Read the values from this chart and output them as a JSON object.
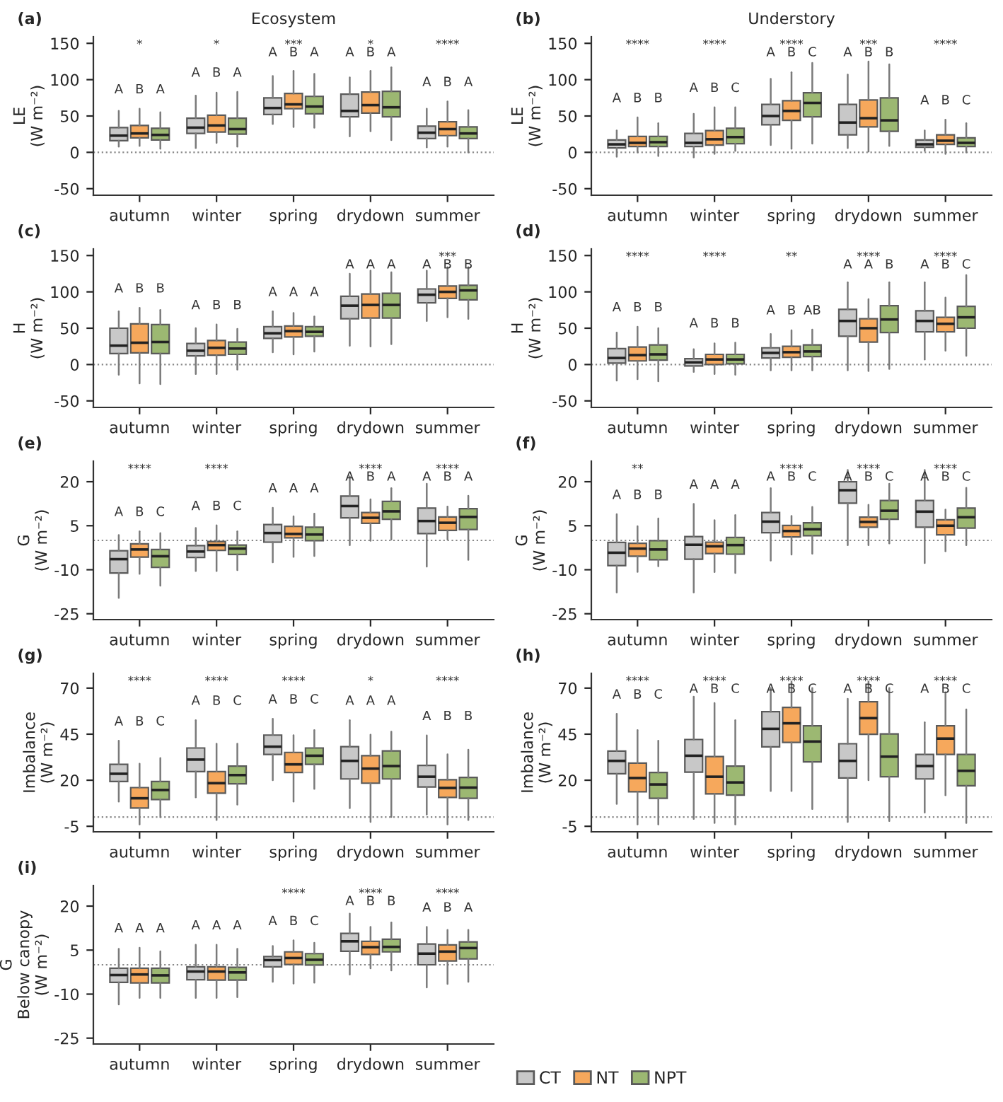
{
  "chart_data": [
    {
      "type": "box",
      "title": "(a)",
      "subtitle": "Ecosystem",
      "ylabel": "LE\n(W m⁻²)",
      "categories": [
        "autumn",
        "winter",
        "spring",
        "drydown",
        "summer"
      ],
      "ylim": [
        -59,
        159
      ],
      "yticks": [
        -50,
        0,
        50,
        100,
        150
      ],
      "ref_lines": [
        {
          "axis": "y",
          "value": 0,
          "line_style": "dotted"
        }
      ],
      "totals": [
        "*",
        "*",
        "***",
        "*",
        "****"
      ],
      "series": [
        {
          "color": "#c8c8c8",
          "value_labels": [
            "A",
            "A",
            "A",
            "A",
            "A"
          ],
          "boxes": [
            {
              "low": 8,
              "q1": 16,
              "median": 23,
              "q3": 34,
              "high": 57
            },
            {
              "low": 6,
              "q1": 26,
              "median": 34,
              "q3": 47,
              "high": 78
            },
            {
              "low": 39,
              "q1": 52,
              "median": 61,
              "q3": 75,
              "high": 105
            },
            {
              "low": 22,
              "q1": 49,
              "median": 57,
              "q3": 80,
              "high": 103
            },
            {
              "low": 7,
              "q1": 19,
              "median": 27,
              "q3": 36,
              "high": 60
            }
          ]
        },
        {
          "color": "#f6a85c",
          "value_labels": [
            "B",
            "B",
            "B",
            "B",
            "B"
          ],
          "boxes": [
            {
              "low": 9,
              "q1": 20,
              "median": 26,
              "q3": 37,
              "high": 60
            },
            {
              "low": 13,
              "q1": 28,
              "median": 37,
              "q3": 51,
              "high": 82
            },
            {
              "low": 35,
              "q1": 60,
              "median": 66,
              "q3": 81,
              "high": 112
            },
            {
              "low": 29,
              "q1": 54,
              "median": 65,
              "q3": 83,
              "high": 112
            },
            {
              "low": 8,
              "q1": 23,
              "median": 32,
              "q3": 42,
              "high": 70
            }
          ]
        },
        {
          "color": "#9cb872",
          "value_labels": [
            "A",
            "A",
            "A",
            "A",
            "A"
          ],
          "boxes": [
            {
              "low": 5,
              "q1": 17,
              "median": 24,
              "q3": 33,
              "high": 55
            },
            {
              "low": 8,
              "q1": 25,
              "median": 32,
              "q3": 47,
              "high": 83
            },
            {
              "low": 34,
              "q1": 53,
              "median": 63,
              "q3": 77,
              "high": 108
            },
            {
              "low": 17,
              "q1": 49,
              "median": 62,
              "q3": 84,
              "high": 117
            },
            {
              "low": 0,
              "q1": 19,
              "median": 26,
              "q3": 35,
              "high": 58
            }
          ]
        }
      ]
    },
    {
      "type": "box",
      "title": "(b)",
      "subtitle": "Understory",
      "ylabel": "LE\n(W m⁻²)",
      "categories": [
        "autumn",
        "winter",
        "spring",
        "drydown",
        "summer"
      ],
      "ylim": [
        -59,
        159
      ],
      "yticks": [
        -50,
        0,
        50,
        100,
        150
      ],
      "ref_lines": [
        {
          "axis": "y",
          "value": 0,
          "line_style": "dotted"
        }
      ],
      "totals": [
        "****",
        "****",
        "****",
        "***",
        "****"
      ],
      "series": [
        {
          "color": "#c8c8c8",
          "value_labels": [
            "A",
            "A",
            "A",
            "A",
            "A"
          ],
          "boxes": [
            {
              "low": -6,
              "q1": 6,
              "median": 11,
              "q3": 17,
              "high": 30
            },
            {
              "low": -7,
              "q1": 8,
              "median": 13,
              "q3": 26,
              "high": 53
            },
            {
              "low": 10,
              "q1": 38,
              "median": 50,
              "q3": 66,
              "high": 101
            },
            {
              "low": 6,
              "q1": 24,
              "median": 41,
              "q3": 66,
              "high": 107
            },
            {
              "low": 2,
              "q1": 7,
              "median": 11,
              "q3": 17,
              "high": 30
            }
          ]
        },
        {
          "color": "#f6a85c",
          "value_labels": [
            "B",
            "B",
            "B",
            "B",
            "B"
          ],
          "boxes": [
            {
              "low": 0,
              "q1": 8,
              "median": 13,
              "q3": 22,
              "high": 48
            },
            {
              "low": -2,
              "q1": 10,
              "median": 18,
              "q3": 30,
              "high": 62
            },
            {
              "low": 5,
              "q1": 44,
              "median": 57,
              "q3": 71,
              "high": 110
            },
            {
              "low": 1,
              "q1": 35,
              "median": 47,
              "q3": 72,
              "high": 125
            },
            {
              "low": -2,
              "q1": 11,
              "median": 16,
              "q3": 24,
              "high": 45
            }
          ]
        },
        {
          "color": "#9cb872",
          "value_labels": [
            "B",
            "C",
            "C",
            "B",
            "C"
          ],
          "boxes": [
            {
              "low": -5,
              "q1": 8,
              "median": 14,
              "q3": 22,
              "high": 40
            },
            {
              "low": 2,
              "q1": 12,
              "median": 21,
              "q3": 33,
              "high": 62
            },
            {
              "low": 12,
              "q1": 49,
              "median": 68,
              "q3": 82,
              "high": 123
            },
            {
              "low": 9,
              "q1": 29,
              "median": 44,
              "q3": 75,
              "high": 121
            },
            {
              "low": 0,
              "q1": 8,
              "median": 13,
              "q3": 20,
              "high": 40
            }
          ]
        }
      ]
    },
    {
      "type": "box",
      "title": "(c)",
      "ylabel": "H\n(W m⁻²)",
      "categories": [
        "autumn",
        "winter",
        "spring",
        "drydown",
        "summer"
      ],
      "ylim": [
        -59,
        159
      ],
      "yticks": [
        -50,
        0,
        50,
        100,
        150
      ],
      "ref_lines": [
        {
          "axis": "y",
          "value": 0,
          "line_style": "dotted"
        }
      ],
      "totals": [
        null,
        null,
        null,
        null,
        "***"
      ],
      "series": [
        {
          "color": "#c8c8c8",
          "value_labels": [
            "A",
            "A",
            "A",
            "A",
            "A"
          ],
          "boxes": [
            {
              "low": -14,
              "q1": 15,
              "median": 26,
              "q3": 50,
              "high": 73
            },
            {
              "low": -13,
              "q1": 12,
              "median": 19,
              "q3": 29,
              "high": 50
            },
            {
              "low": 17,
              "q1": 36,
              "median": 43,
              "q3": 52,
              "high": 73
            },
            {
              "low": 26,
              "q1": 63,
              "median": 81,
              "q3": 94,
              "high": 125
            },
            {
              "low": 60,
              "q1": 85,
              "median": 96,
              "q3": 104,
              "high": 129
            }
          ]
        },
        {
          "color": "#f6a85c",
          "value_labels": [
            "B",
            "B",
            "A",
            "A",
            "B"
          ],
          "boxes": [
            {
              "low": -26,
              "q1": 16,
              "median": 30,
              "q3": 56,
              "high": 78
            },
            {
              "low": -13,
              "q1": 13,
              "median": 23,
              "q3": 33,
              "high": 55
            },
            {
              "low": 14,
              "q1": 38,
              "median": 46,
              "q3": 53,
              "high": 71
            },
            {
              "low": 25,
              "q1": 64,
              "median": 82,
              "q3": 97,
              "high": 129
            },
            {
              "low": 65,
              "q1": 91,
              "median": 100,
              "q3": 108,
              "high": 134
            }
          ]
        },
        {
          "color": "#9cb872",
          "value_labels": [
            "B",
            "B",
            "A",
            "A",
            "B"
          ],
          "boxes": [
            {
              "low": -27,
              "q1": 15,
              "median": 31,
              "q3": 55,
              "high": 75
            },
            {
              "low": -7,
              "q1": 14,
              "median": 22,
              "q3": 31,
              "high": 49
            },
            {
              "low": 18,
              "q1": 39,
              "median": 45,
              "q3": 52,
              "high": 66
            },
            {
              "low": 28,
              "q1": 64,
              "median": 82,
              "q3": 98,
              "high": 127
            },
            {
              "low": 63,
              "q1": 89,
              "median": 102,
              "q3": 109,
              "high": 134
            }
          ]
        }
      ]
    },
    {
      "type": "box",
      "title": "(d)",
      "ylabel": "H\n(W m⁻²)",
      "categories": [
        "autumn",
        "winter",
        "spring",
        "drydown",
        "summer"
      ],
      "ylim": [
        -59,
        159
      ],
      "yticks": [
        -50,
        0,
        50,
        100,
        150
      ],
      "ref_lines": [
        {
          "axis": "y",
          "value": 0,
          "line_style": "dotted"
        }
      ],
      "totals": [
        "****",
        "****",
        "**",
        "****",
        "****"
      ],
      "series": [
        {
          "color": "#c8c8c8",
          "value_labels": [
            "A",
            "A",
            "A",
            "A",
            "A"
          ],
          "boxes": [
            {
              "low": -22,
              "q1": 2,
              "median": 9,
              "q3": 22,
              "high": 44
            },
            {
              "low": -10,
              "q1": -2,
              "median": 3,
              "q3": 8,
              "high": 21
            },
            {
              "low": -8,
              "q1": 9,
              "median": 16,
              "q3": 23,
              "high": 42
            },
            {
              "low": -8,
              "q1": 39,
              "median": 60,
              "q3": 76,
              "high": 113
            },
            {
              "low": 7,
              "q1": 45,
              "median": 60,
              "q3": 74,
              "high": 113
            }
          ]
        },
        {
          "color": "#f6a85c",
          "value_labels": [
            "B",
            "B",
            "B",
            "A",
            "B"
          ],
          "boxes": [
            {
              "low": -20,
              "q1": 5,
              "median": 13,
              "q3": 24,
              "high": 52
            },
            {
              "low": -13,
              "q1": 0,
              "median": 7,
              "q3": 14,
              "high": 29
            },
            {
              "low": -8,
              "q1": 10,
              "median": 17,
              "q3": 25,
              "high": 47
            },
            {
              "low": -9,
              "q1": 31,
              "median": 50,
              "q3": 63,
              "high": 90
            },
            {
              "low": 19,
              "q1": 45,
              "median": 56,
              "q3": 65,
              "high": 92
            }
          ]
        },
        {
          "color": "#9cb872",
          "value_labels": [
            "B",
            "B",
            "AB",
            "B",
            "C"
          ],
          "boxes": [
            {
              "low": -23,
              "q1": 6,
              "median": 14,
              "q3": 27,
              "high": 50
            },
            {
              "low": -14,
              "q1": 1,
              "median": 7,
              "q3": 14,
              "high": 30
            },
            {
              "low": -8,
              "q1": 11,
              "median": 18,
              "q3": 27,
              "high": 48
            },
            {
              "low": -6,
              "q1": 44,
              "median": 62,
              "q3": 81,
              "high": 113
            },
            {
              "low": 12,
              "q1": 50,
              "median": 65,
              "q3": 80,
              "high": 123
            }
          ]
        }
      ]
    },
    {
      "type": "box",
      "title": "(e)",
      "ylabel": "G\n(W m⁻²)",
      "categories": [
        "autumn",
        "winter",
        "spring",
        "drydown",
        "summer"
      ],
      "ylim": [
        -27,
        27
      ],
      "yticks": [
        -25,
        -10,
        5,
        20
      ],
      "ref_lines": [
        {
          "axis": "y",
          "value": 0,
          "line_style": "dotted"
        }
      ],
      "totals": [
        "****",
        "****",
        null,
        "****",
        "****"
      ],
      "series": [
        {
          "color": "#c8c8c8",
          "value_labels": [
            "A",
            "A",
            "A",
            "A",
            "A"
          ],
          "boxes": [
            {
              "low": -19.6,
              "q1": -11.1,
              "median": -6.4,
              "q3": -3.5,
              "high": 1.8
            },
            {
              "low": -10.4,
              "q1": -5.8,
              "median": -3.8,
              "q3": -1.8,
              "high": 4.2
            },
            {
              "low": -7.5,
              "q1": -0.6,
              "median": 2.5,
              "q3": 5.4,
              "high": 11.1
            },
            {
              "low": -1.6,
              "q1": 7.7,
              "median": 11.7,
              "q3": 15.1,
              "high": 21.8
            },
            {
              "low": -8.9,
              "q1": 2.3,
              "median": 6.6,
              "q3": 11.0,
              "high": 19.3
            }
          ]
        },
        {
          "color": "#f6a85c",
          "value_labels": [
            "B",
            "B",
            "A",
            "B",
            "B"
          ],
          "boxes": [
            {
              "low": -11.4,
              "q1": -5.7,
              "median": -3.1,
              "q3": -1.2,
              "high": 3.1
            },
            {
              "low": -10.4,
              "q1": -3.4,
              "median": -1.6,
              "q3": -0.4,
              "high": 5.1
            },
            {
              "low": -5.6,
              "q1": 0.9,
              "median": 2.2,
              "q3": 4.8,
              "high": 8.2
            },
            {
              "low": -0.1,
              "q1": 5.8,
              "median": 7.7,
              "q3": 9.5,
              "high": 14.0
            },
            {
              "low": 0.3,
              "q1": 3.4,
              "median": 6.0,
              "q3": 8.0,
              "high": 11.5
            }
          ]
        },
        {
          "color": "#9cb872",
          "value_labels": [
            "C",
            "C",
            "A",
            "A",
            "A"
          ],
          "boxes": [
            {
              "low": -15.4,
              "q1": -9.2,
              "median": -5.4,
              "q3": -3.1,
              "high": 2.5
            },
            {
              "low": -10.1,
              "q1": -4.8,
              "median": -2.8,
              "q3": -1.6,
              "high": 3.1
            },
            {
              "low": -5.3,
              "q1": -0.1,
              "median": 2.0,
              "q3": 4.5,
              "high": 9.1
            },
            {
              "low": 0.3,
              "q1": 7.2,
              "median": 9.9,
              "q3": 13.3,
              "high": 17.8
            },
            {
              "low": -6.6,
              "q1": 3.7,
              "median": 8.0,
              "q3": 10.8,
              "high": 15.2
            }
          ]
        }
      ]
    },
    {
      "type": "box",
      "title": "(f)",
      "ylabel": "G\n(W m⁻²)",
      "categories": [
        "autumn",
        "winter",
        "spring",
        "drydown",
        "summer"
      ],
      "ylim": [
        -27,
        27
      ],
      "yticks": [
        -25,
        -10,
        5,
        20
      ],
      "ref_lines": [
        {
          "axis": "y",
          "value": 0,
          "line_style": "dotted"
        }
      ],
      "totals": [
        "**",
        null,
        "****",
        "****",
        "****"
      ],
      "series": [
        {
          "color": "#c8c8c8",
          "value_labels": [
            "A",
            "A",
            "A",
            "A",
            "A"
          ],
          "boxes": [
            {
              "low": -17.7,
              "q1": -8.6,
              "median": -4.2,
              "q3": -0.7,
              "high": 8.9
            },
            {
              "low": -17.7,
              "q1": -6.4,
              "median": -1.5,
              "q3": 1.3,
              "high": 12.4
            },
            {
              "low": -6.9,
              "q1": 2.6,
              "median": 6.4,
              "q3": 9.5,
              "high": 17.8
            },
            {
              "low": -1.6,
              "q1": 12.7,
              "median": 17.1,
              "q3": 20.0,
              "high": 24.0
            },
            {
              "low": -7.7,
              "q1": 4.5,
              "median": 9.8,
              "q3": 13.6,
              "high": 24.0
            }
          ]
        },
        {
          "color": "#f6a85c",
          "value_labels": [
            "B",
            "A",
            "B",
            "B",
            "B"
          ],
          "boxes": [
            {
              "low": -10.7,
              "q1": -5.4,
              "median": -2.8,
              "q3": -1.0,
              "high": 4.8
            },
            {
              "low": -10.8,
              "q1": -4.5,
              "median": -2.0,
              "q3": -0.6,
              "high": 6.9
            },
            {
              "low": -4.8,
              "q1": 1.2,
              "median": 3.2,
              "q3": 5.1,
              "high": 8.3
            },
            {
              "low": -1.6,
              "q1": 4.5,
              "median": 6.3,
              "q3": 7.9,
              "high": 12.1
            },
            {
              "low": -3.7,
              "q1": 1.9,
              "median": 5.0,
              "q3": 7.0,
              "high": 10.5
            }
          ]
        },
        {
          "color": "#9cb872",
          "value_labels": [
            "B",
            "A",
            "C",
            "C",
            "C"
          ],
          "boxes": [
            {
              "low": -8.8,
              "q1": -6.6,
              "median": -3.1,
              "q3": -0.1,
              "high": 7.5
            },
            {
              "low": -11.1,
              "q1": -4.7,
              "median": -1.6,
              "q3": 1.0,
              "high": 8.6
            },
            {
              "low": -4.5,
              "q1": 1.6,
              "median": 3.8,
              "q3": 6.0,
              "high": 11.4
            },
            {
              "low": -1.0,
              "q1": 7.2,
              "median": 10.1,
              "q3": 13.6,
              "high": 19.3
            },
            {
              "low": -1.6,
              "q1": 4.2,
              "median": 7.9,
              "q3": 11.0,
              "high": 17.9
            }
          ]
        }
      ]
    },
    {
      "type": "box",
      "title": "(g)",
      "ylabel": "Imbalance\n(W m⁻²)",
      "categories": [
        "autumn",
        "winter",
        "spring",
        "drydown",
        "summer"
      ],
      "ylim": [
        -8,
        78
      ],
      "yticks": [
        -5,
        20,
        45,
        70
      ],
      "ref_lines": [
        {
          "axis": "y",
          "value": 0,
          "line_style": "dotted"
        }
      ],
      "totals": [
        "****",
        "****",
        "****",
        "*",
        "****"
      ],
      "series": [
        {
          "color": "#c8c8c8",
          "value_labels": [
            "A",
            "A",
            "A",
            "A",
            "A"
          ],
          "boxes": [
            {
              "low": 8.4,
              "q1": 19.3,
              "median": 23.5,
              "q3": 28.6,
              "high": 41.4
            },
            {
              "low": 10.7,
              "q1": 24.7,
              "median": 31.2,
              "q3": 37.5,
              "high": 52.6
            },
            {
              "low": 20,
              "q1": 34.0,
              "median": 38.2,
              "q3": 44.5,
              "high": 53.3
            },
            {
              "low": 4.9,
              "q1": 20.7,
              "median": 30.5,
              "q3": 38.2,
              "high": 52.6
            },
            {
              "low": 1.4,
              "q1": 16.3,
              "median": 21.9,
              "q3": 28.0,
              "high": 44.3
            }
          ]
        },
        {
          "color": "#f6a85c",
          "value_labels": [
            "B",
            "B",
            "B",
            "A",
            "B"
          ],
          "boxes": [
            {
              "low": -4.0,
              "q1": 4.9,
              "median": 10.2,
              "q3": 16.0,
              "high": 29
            },
            {
              "low": -1.6,
              "q1": 13.0,
              "median": 18.4,
              "q3": 24.7,
              "high": 39.8
            },
            {
              "low": 8.4,
              "q1": 24.2,
              "median": 28.6,
              "q3": 35.1,
              "high": 44.4
            },
            {
              "low": -2.6,
              "q1": 18.4,
              "median": 26.3,
              "q3": 33.3,
              "high": 44.7
            },
            {
              "low": -4.0,
              "q1": 10.7,
              "median": 15.8,
              "q3": 20.3,
              "high": 34
            }
          ]
        },
        {
          "color": "#9cb872",
          "value_labels": [
            "C",
            "C",
            "C",
            "A",
            "B"
          ],
          "boxes": [
            {
              "low": 0,
              "q1": 9.5,
              "median": 14.7,
              "q3": 19.3,
              "high": 32
            },
            {
              "low": 6.8,
              "q1": 18.1,
              "median": 22.8,
              "q3": 27.7,
              "high": 39.8
            },
            {
              "low": 15.3,
              "q1": 28.6,
              "median": 33.3,
              "q3": 37.5,
              "high": 47.2
            },
            {
              "low": 0.1,
              "q1": 20.7,
              "median": 27.7,
              "q3": 35.9,
              "high": 46.3
            },
            {
              "low": -1.6,
              "q1": 10.2,
              "median": 16.0,
              "q3": 21.5,
              "high": 36.5
            }
          ]
        }
      ]
    },
    {
      "type": "box",
      "title": "(h)",
      "ylabel": "Imbalance\n(W m⁻²)",
      "categories": [
        "autumn",
        "winter",
        "spring",
        "drydown",
        "summer"
      ],
      "ylim": [
        -8,
        78
      ],
      "yticks": [
        -5,
        20,
        45,
        70
      ],
      "ref_lines": [
        {
          "axis": "y",
          "value": 0,
          "line_style": "dotted"
        }
      ],
      "totals": [
        "****",
        "****",
        "****",
        "****",
        "****"
      ],
      "series": [
        {
          "color": "#c8c8c8",
          "value_labels": [
            "A",
            "A",
            "A",
            "A",
            "A"
          ],
          "boxes": [
            {
              "low": 7.2,
              "q1": 23.5,
              "median": 30.5,
              "q3": 35.8,
              "high": 56.0
            },
            {
              "low": -1.0,
              "q1": 24.4,
              "median": 33.3,
              "q3": 42.1,
              "high": 65.3
            },
            {
              "low": 14.2,
              "q1": 38.1,
              "median": 47.9,
              "q3": 57.2,
              "high": 70
            },
            {
              "low": -2.6,
              "q1": 21.2,
              "median": 30.5,
              "q3": 39.8,
              "high": 64.2
            },
            {
              "low": 2.5,
              "q1": 20.7,
              "median": 27.7,
              "q3": 34.0,
              "high": 51.4
            }
          ]
        },
        {
          "color": "#f6a85c",
          "value_labels": [
            "B",
            "B",
            "B",
            "B",
            "B"
          ],
          "boxes": [
            {
              "low": -4.0,
              "q1": 13.7,
              "median": 21.2,
              "q3": 29.3,
              "high": 47.2
            },
            {
              "low": -3.2,
              "q1": 12.6,
              "median": 21.9,
              "q3": 32.8,
              "high": 61.9
            },
            {
              "low": 14.2,
              "q1": 40.5,
              "median": 50.9,
              "q3": 59.5,
              "high": 73.5
            },
            {
              "low": 20.0,
              "q1": 44.9,
              "median": 53.7,
              "q3": 62.6,
              "high": 73.5
            },
            {
              "low": 11.9,
              "q1": 34.0,
              "median": 42.6,
              "q3": 49.5,
              "high": 67.7
            }
          ]
        },
        {
          "color": "#9cb872",
          "value_labels": [
            "C",
            "C",
            "C",
            "C",
            "C"
          ],
          "boxes": [
            {
              "low": -4.0,
              "q1": 10.2,
              "median": 17.7,
              "q3": 24.2,
              "high": 41.4
            },
            {
              "low": -4.0,
              "q1": 11.9,
              "median": 18.8,
              "q3": 27.7,
              "high": 52.6
            },
            {
              "low": 4.4,
              "q1": 30.0,
              "median": 41.0,
              "q3": 49.5,
              "high": 70
            },
            {
              "low": -2.1,
              "q1": 21.9,
              "median": 32.8,
              "q3": 45.1,
              "high": 70
            },
            {
              "low": -3.2,
              "q1": 17.0,
              "median": 25.1,
              "q3": 34.0,
              "high": 58.4
            }
          ]
        }
      ]
    },
    {
      "type": "box",
      "title": "(i)",
      "ylabel": "G\nBelow canopy\n(W m⁻²)",
      "categories": [
        "autumn",
        "winter",
        "spring",
        "drydown",
        "summer"
      ],
      "ylim": [
        -27,
        27
      ],
      "yticks": [
        -25,
        -10,
        5,
        20
      ],
      "legend": "bottom",
      "ref_lines": [
        {
          "axis": "y",
          "value": 0,
          "line_style": "dotted"
        }
      ],
      "totals": [
        null,
        null,
        "****",
        "****",
        "****"
      ],
      "series": [
        {
          "name": "CT",
          "color": "#c8c8c8",
          "value_labels": [
            "A",
            "A",
            "A",
            "A",
            "A"
          ],
          "boxes": [
            {
              "low": -13.5,
              "q1": -6.0,
              "median": -3.5,
              "q3": -1.2,
              "high": 5.4
            },
            {
              "low": -11.3,
              "q1": -5.1,
              "median": -2.3,
              "q3": -0.7,
              "high": 6.8
            },
            {
              "low": -5.8,
              "q1": -0.7,
              "median": 1.6,
              "q3": 2.8,
              "high": 6.4
            },
            {
              "low": -3.3,
              "q1": 4.6,
              "median": 8.0,
              "q3": 10.7,
              "high": 17.4
            },
            {
              "low": -7.7,
              "q1": 0,
              "median": 3.8,
              "q3": 7.1,
              "high": 12.9
            }
          ]
        },
        {
          "name": "NT",
          "color": "#f6a85c",
          "value_labels": [
            "A",
            "A",
            "B",
            "B",
            "B"
          ],
          "boxes": [
            {
              "low": -11.3,
              "q1": -6.2,
              "median": -3.3,
              "q3": -1.2,
              "high": 5.8
            },
            {
              "low": -11.3,
              "q1": -5.2,
              "median": -2.3,
              "q3": -0.7,
              "high": 6.8
            },
            {
              "low": -6.4,
              "q1": 0.1,
              "median": 2.3,
              "q3": 4.4,
              "high": 8.3
            },
            {
              "low": -1.2,
              "q1": 3.5,
              "median": 6.0,
              "q3": 8.0,
              "high": 12.9
            },
            {
              "low": -6.5,
              "q1": 1.3,
              "median": 4.5,
              "q3": 6.8,
              "high": 11.9
            }
          ]
        },
        {
          "name": "NPT",
          "color": "#9cb872",
          "value_labels": [
            "A",
            "A",
            "C",
            "B",
            "A"
          ],
          "boxes": [
            {
              "low": -11.3,
              "q1": -6.2,
              "median": -3.6,
              "q3": -1.2,
              "high": 4.6
            },
            {
              "low": -11.0,
              "q1": -5.2,
              "median": -2.6,
              "q3": -0.9,
              "high": 5.4
            },
            {
              "low": -6.1,
              "q1": -0.1,
              "median": 1.7,
              "q3": 3.8,
              "high": 7.5
            },
            {
              "low": -1.9,
              "q1": 4.4,
              "median": 6.1,
              "q3": 8.7,
              "high": 14.4
            },
            {
              "low": -5.8,
              "q1": 2.0,
              "median": 5.7,
              "q3": 7.8,
              "high": 11.9
            }
          ]
        }
      ]
    }
  ]
}
